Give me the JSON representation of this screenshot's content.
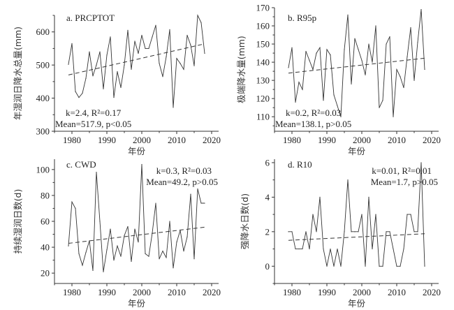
{
  "chart_data": [
    {
      "type": "line",
      "id": "a",
      "title": "a. PRCPTOT",
      "xlabel": "年份",
      "ylabel": "年湿润日降水总量(mm)",
      "xlim": [
        1975,
        2022
      ],
      "ylim": [
        300,
        650
      ],
      "xticks": [
        1980,
        1990,
        2000,
        2010,
        2020
      ],
      "yticks": [
        300,
        400,
        500,
        600
      ],
      "stat_line1": {
        "k": "2.4",
        "r2": "0.17"
      },
      "stat_line2": {
        "mean": "517.9",
        "p": "p<0.05"
      },
      "stat_text1": "k=2.4, R²=0.17",
      "stat_text2": "Mean=517.9, p<0.05",
      "stat_position": "bottom-left",
      "x": [
        1979,
        1980,
        1981,
        1982,
        1983,
        1984,
        1985,
        1986,
        1987,
        1988,
        1989,
        1990,
        1991,
        1992,
        1993,
        1994,
        1995,
        1996,
        1997,
        1998,
        1999,
        2000,
        2001,
        2002,
        2003,
        2004,
        2005,
        2006,
        2007,
        2008,
        2009,
        2010,
        2011,
        2012,
        2013,
        2014,
        2015,
        2016,
        2017,
        2018
      ],
      "values": [
        502,
        565,
        420,
        402,
        415,
        460,
        540,
        467,
        500,
        540,
        428,
        530,
        585,
        402,
        480,
        432,
        500,
        605,
        487,
        572,
        535,
        590,
        550,
        550,
        585,
        620,
        505,
        465,
        525,
        607,
        372,
        520,
        505,
        487,
        590,
        560,
        498,
        650,
        628,
        535
      ],
      "trend": {
        "start": [
          1979,
          470
        ],
        "end": [
          2018,
          564
        ]
      }
    },
    {
      "type": "line",
      "id": "b",
      "title": "b. R95p",
      "xlabel": "年份",
      "ylabel": "极端降水量(mm)",
      "xlim": [
        1975,
        2022
      ],
      "ylim": [
        102,
        170
      ],
      "xticks": [
        1980,
        1990,
        2000,
        2010,
        2020
      ],
      "yticks": [
        110,
        120,
        130,
        140,
        150,
        160,
        170
      ],
      "stat_text1": "k=0.2, R²=0.03",
      "stat_text2": "Mean=138.1, p>0.05",
      "stat_position": "bottom-left",
      "x": [
        1979,
        1980,
        1981,
        1982,
        1983,
        1984,
        1985,
        1986,
        1987,
        1988,
        1989,
        1990,
        1991,
        1992,
        1993,
        1994,
        1995,
        1996,
        1997,
        1998,
        1999,
        2000,
        2001,
        2002,
        2003,
        2004,
        2005,
        2006,
        2007,
        2008,
        2009,
        2010,
        2011,
        2012,
        2013,
        2014,
        2015,
        2016,
        2017,
        2018
      ],
      "values": [
        137,
        148,
        118,
        129,
        125,
        146,
        141,
        136,
        145,
        148,
        119,
        147,
        144,
        122,
        116,
        110,
        147,
        166,
        128,
        153,
        147,
        141,
        133,
        150,
        140,
        160,
        115,
        119,
        150,
        154,
        110,
        136,
        132,
        126,
        143,
        159,
        130,
        151,
        169,
        136
      ],
      "trend": {
        "start": [
          1979,
          134
        ],
        "end": [
          2018,
          142.2
        ]
      }
    },
    {
      "type": "line",
      "id": "c",
      "title": "c. CWD",
      "xlabel": "年份",
      "ylabel": "持续湿润日数(d)",
      "xlim": [
        1975,
        2022
      ],
      "ylim": [
        12,
        108
      ],
      "xticks": [
        1980,
        1990,
        2000,
        2010,
        2020
      ],
      "yticks": [
        20,
        40,
        60,
        80,
        100
      ],
      "stat_text1": "k=0.3, R²=0.03",
      "stat_text2": "Mean=49.2, p>0.05",
      "stat_position": "top-right",
      "x": [
        1979,
        1980,
        1981,
        1982,
        1983,
        1984,
        1985,
        1986,
        1987,
        1988,
        1989,
        1990,
        1991,
        1992,
        1993,
        1994,
        1995,
        1996,
        1997,
        1998,
        1999,
        2000,
        2001,
        2002,
        2003,
        2004,
        2005,
        2006,
        2007,
        2008,
        2009,
        2010,
        2011,
        2012,
        2013,
        2014,
        2015,
        2016,
        2017,
        2018
      ],
      "values": [
        41,
        75,
        70,
        35,
        26,
        36,
        45,
        22,
        98,
        60,
        21,
        38,
        54,
        30,
        41,
        33,
        49,
        56,
        29,
        54,
        44,
        104,
        35,
        33,
        51,
        74,
        31,
        37,
        32,
        60,
        24,
        44,
        53,
        37,
        48,
        81,
        31,
        85,
        74,
        74
      ],
      "trend": {
        "start": [
          1979,
          43
        ],
        "end": [
          2018,
          55.5
        ]
      }
    },
    {
      "type": "line",
      "id": "d",
      "title": "d. R10",
      "xlabel": "年份",
      "ylabel": "强降水日数(d)",
      "xlim": [
        1975,
        2022
      ],
      "ylim": [
        -1,
        6.2
      ],
      "xticks": [
        1980,
        1990,
        2000,
        2010,
        2020
      ],
      "yticks": [
        0,
        2,
        4,
        6
      ],
      "stat_text1": "k=0.01, R²=0.01",
      "stat_text2": "Mean=1.7, p>0.05",
      "stat_position": "top-right",
      "x": [
        1979,
        1980,
        1981,
        1982,
        1983,
        1984,
        1985,
        1986,
        1987,
        1988,
        1989,
        1990,
        1991,
        1992,
        1993,
        1994,
        1995,
        1996,
        1997,
        1998,
        1999,
        2000,
        2001,
        2002,
        2003,
        2004,
        2005,
        2006,
        2007,
        2008,
        2009,
        2010,
        2011,
        2012,
        2013,
        2014,
        2015,
        2016,
        2017,
        2018
      ],
      "values": [
        2,
        2,
        1,
        1,
        1,
        2,
        1,
        3,
        2,
        4,
        1,
        0,
        1,
        0,
        1,
        0,
        2,
        5,
        2,
        2,
        2,
        3,
        0,
        4,
        1,
        3,
        0,
        0,
        2,
        2,
        1,
        0,
        0,
        1,
        3,
        3,
        2,
        2,
        6,
        0
      ],
      "trend": {
        "start": [
          1979,
          1.5
        ],
        "end": [
          2018,
          1.88
        ]
      }
    }
  ]
}
